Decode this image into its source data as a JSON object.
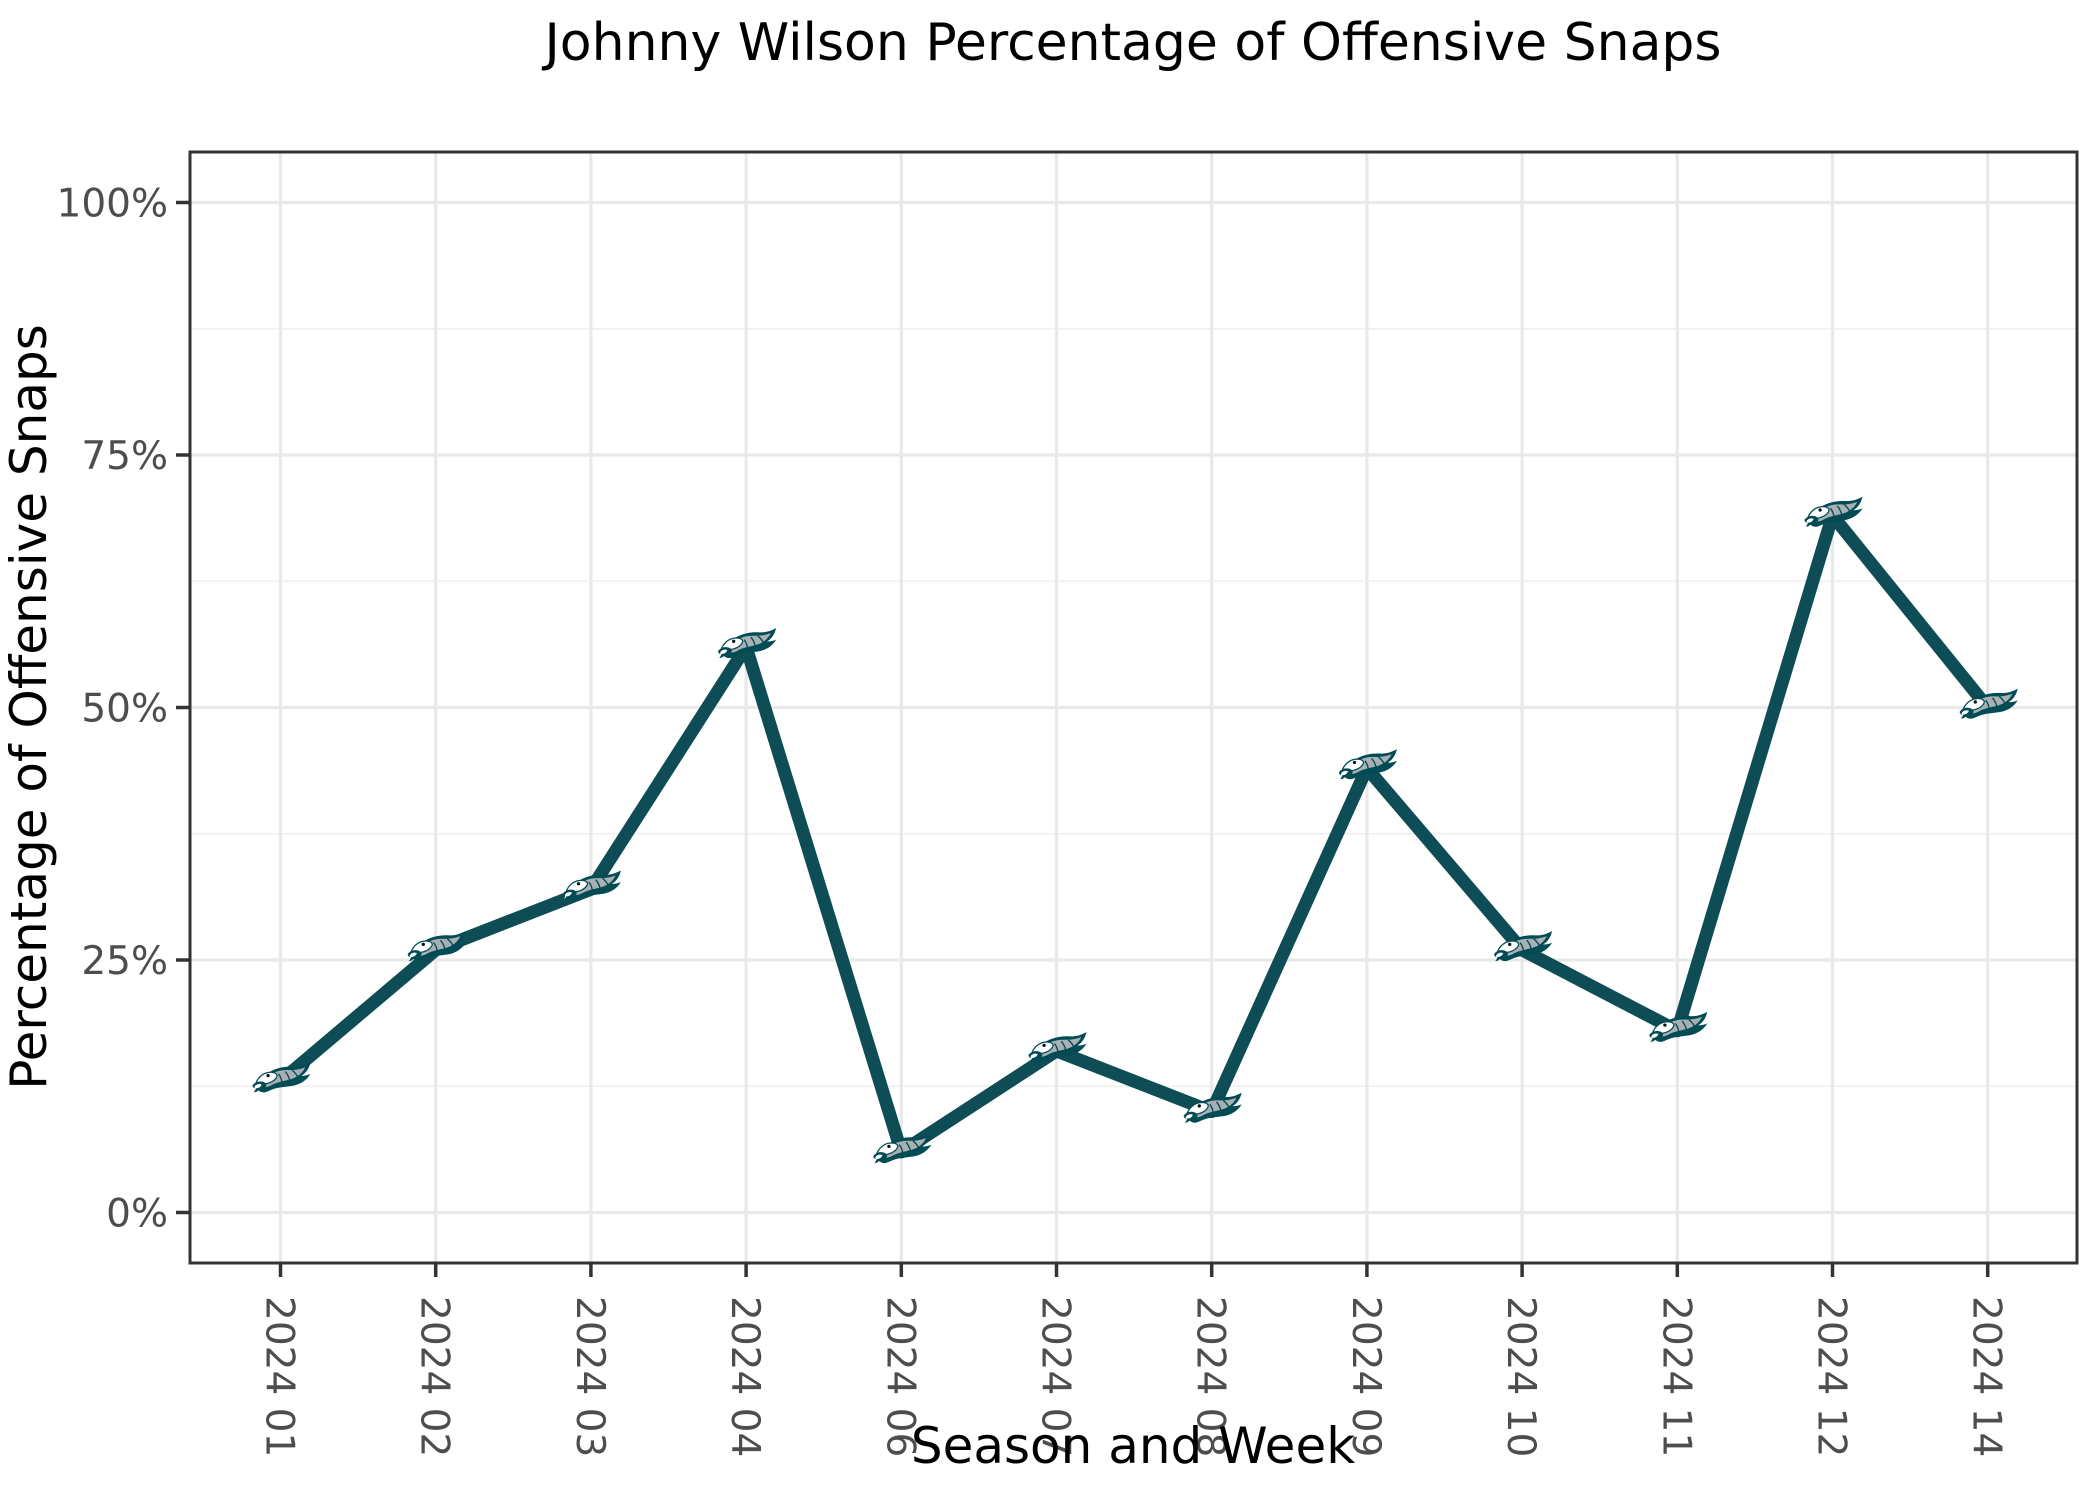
{
  "page": {
    "background": "#ffffff"
  },
  "chart_data": {
    "type": "line",
    "title": "Johnny Wilson Percentage of Offensive Snaps",
    "xlabel": "Season and Week",
    "ylabel": "Percentage of Offensive Snaps",
    "categories": [
      "2024 01",
      "2024 02",
      "2024 03",
      "2024 04",
      "2024 06",
      "2024 07",
      "2024 08",
      "2024 09",
      "2024 10",
      "2024 11",
      "2024 12",
      "2024 14"
    ],
    "values": [
      13,
      26,
      32,
      56,
      6,
      16,
      10,
      44,
      26,
      18,
      69,
      50
    ],
    "y_axis": {
      "tick_labels": [
        "0%",
        "25%",
        "50%",
        "75%",
        "100%"
      ],
      "tick_values": [
        0,
        25,
        50,
        75,
        100
      ],
      "minor_tick_values": [
        12.5,
        37.5,
        62.5,
        87.5
      ],
      "range": [
        0,
        100
      ]
    },
    "x_axis": {
      "tick_label_rotation_deg": 90
    },
    "grid": "on",
    "legend": "none",
    "marker": "philadelphia-eagles-logo",
    "colors": {
      "line": "#0e4d56",
      "grid_major": "#e9e9e9",
      "grid_minor": "#f0f0f0",
      "axis_text": "#4d4d4d",
      "axis_title": "#000000",
      "panel_border": "#333333",
      "tick_mark": "#333333",
      "logo_green": "#014b54",
      "logo_silver": "#a9b0b3",
      "logo_white": "#ffffff",
      "background": "#ffffff"
    }
  }
}
